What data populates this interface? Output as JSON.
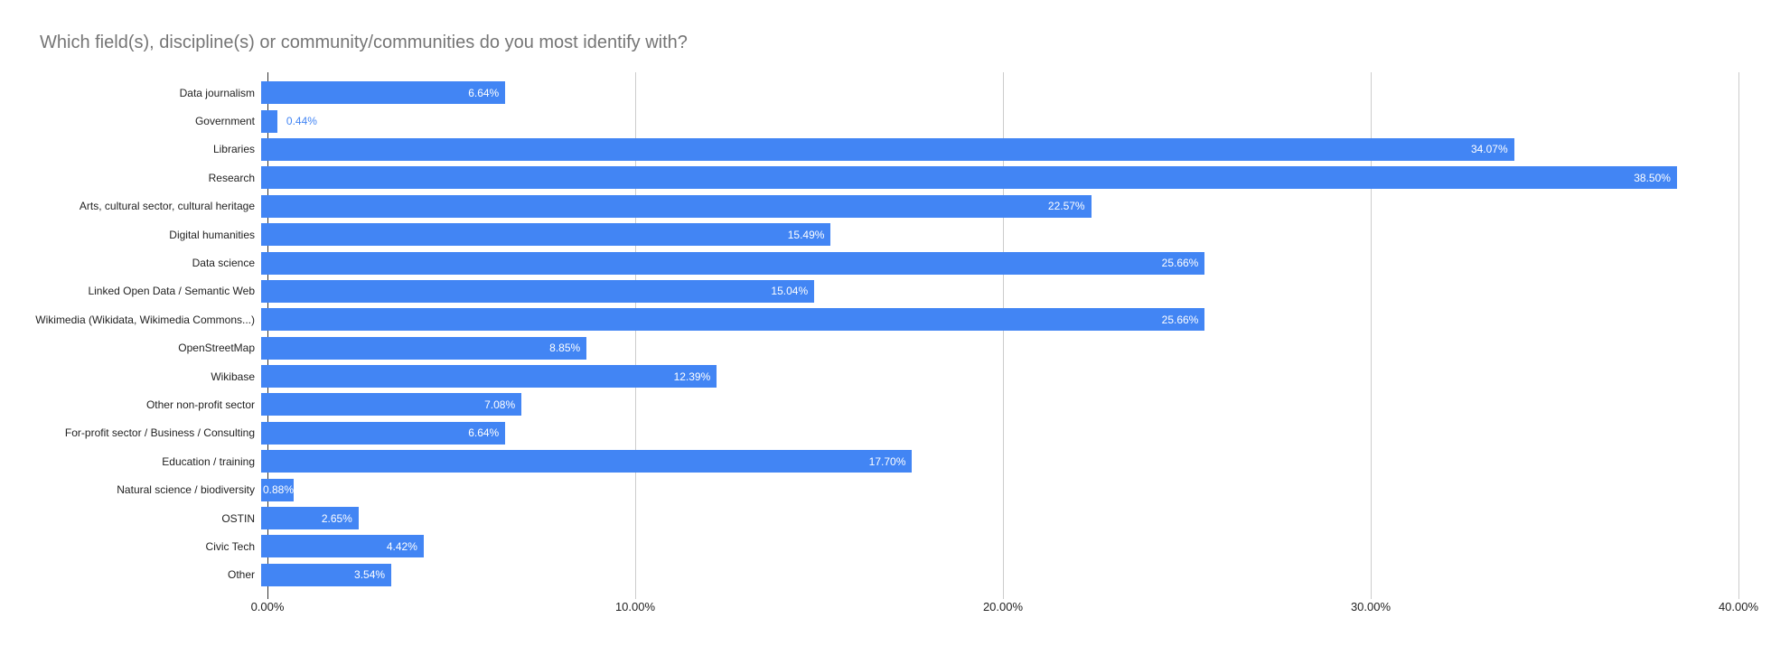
{
  "page": {
    "background_color": "#ffffff"
  },
  "chart_data": {
    "type": "bar",
    "orientation": "horizontal",
    "title": "Which field(s), discipline(s) or community/communities do you most identify with?",
    "xlabel": "",
    "ylabel": "",
    "xlim": [
      0,
      40
    ],
    "x_ticks": [
      "0.00%",
      "10.00%",
      "20.00%",
      "30.00%",
      "40.00%"
    ],
    "grid": true,
    "legend": "none",
    "categories": [
      "Data journalism",
      "Government",
      "Libraries",
      "Research",
      "Arts, cultural sector, cultural heritage",
      "Digital humanities",
      "Data science",
      "Linked Open Data / Semantic Web",
      "Wikimedia (Wikidata, Wikimedia Commons...)",
      "OpenStreetMap",
      "Wikibase",
      "Other non-profit sector",
      "For-profit sector / Business / Consulting",
      "Education / training",
      "Natural science / biodiversity",
      "OSTIN",
      "Civic Tech",
      "Other"
    ],
    "values": [
      6.64,
      0.44,
      34.07,
      38.5,
      22.57,
      15.49,
      25.66,
      15.04,
      25.66,
      8.85,
      12.39,
      7.08,
      6.64,
      17.7,
      0.88,
      2.65,
      4.42,
      3.54
    ],
    "value_labels": [
      "6.64%",
      "0.44%",
      "34.07%",
      "38.50%",
      "22.57%",
      "15.49%",
      "25.66%",
      "15.04%",
      "25.66%",
      "8.85%",
      "12.39%",
      "7.08%",
      "6.64%",
      "17.70%",
      "0.88%",
      "2.65%",
      "4.42%",
      "3.54%"
    ],
    "value_label_placement": [
      "inside",
      "outside",
      "inside",
      "inside",
      "inside",
      "inside",
      "inside",
      "inside",
      "inside",
      "inside",
      "inside",
      "inside",
      "inside",
      "inside",
      "start",
      "inside",
      "inside",
      "inside"
    ],
    "colors": {
      "bar": "#4285f4",
      "title_text": "#757575",
      "category_text": "#222222",
      "tick_text": "#222222",
      "gridline": "#cccccc",
      "axis_line": "#333333",
      "value_inside": "#ffffff",
      "value_outside": "#4285f4"
    }
  }
}
